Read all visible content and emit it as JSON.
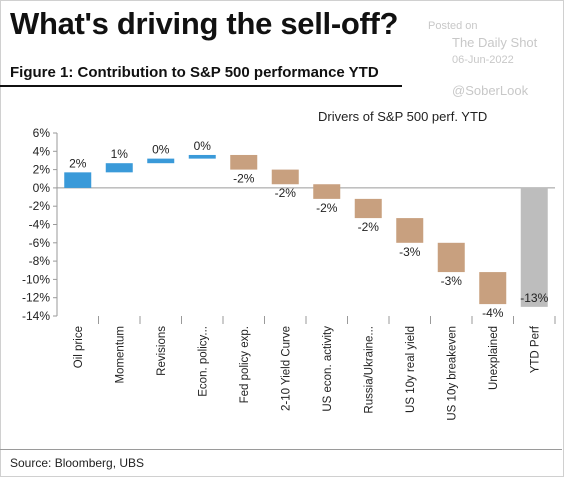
{
  "header": {
    "headline": "What's driving the sell-off?",
    "figure_title": "Figure 1: Contribution to S&P 500 performance YTD"
  },
  "watermark": {
    "posted": "Posted on",
    "source": "The Daily Shot",
    "date": "06-Jun-2022",
    "handle": "@SoberLook"
  },
  "footer": {
    "source": "Source: Bloomberg, UBS"
  },
  "colors": {
    "positive": "#3a9ad9",
    "negative": "#c8a07f",
    "total": "#bdbdbd"
  },
  "chart_data": {
    "type": "bar",
    "subtype": "waterfall",
    "title": "Drivers of S&P 500 perf. YTD",
    "ylim": [
      -14,
      6
    ],
    "y_ticks": [
      6,
      4,
      2,
      0,
      -2,
      -4,
      -6,
      -8,
      -10,
      -12,
      -14
    ],
    "y_tick_labels": [
      "6%",
      "4%",
      "2%",
      "0%",
      "-2%",
      "-4%",
      "-6%",
      "-8%",
      "-10%",
      "-12%",
      "-14%"
    ],
    "grid": false,
    "categories": [
      "Oil price",
      "Momentum",
      "Revisions",
      "Econ. policy...",
      "Fed policy exp.",
      "2-10 Yield Curve",
      "US econ. activity",
      "Russia/Ukraine...",
      "US 10y real yield",
      "US 10y breakeven",
      "Unexplained",
      "YTD Perf"
    ],
    "values": [
      1.7,
      1.0,
      0.5,
      0.4,
      -1.6,
      -1.6,
      -1.6,
      -2.1,
      -2.7,
      -3.2,
      -3.5,
      -13.0
    ],
    "data_labels": [
      "2%",
      "1%",
      "0%",
      "0%",
      "-2%",
      "-2%",
      "-2%",
      "-2%",
      "-3%",
      "-3%",
      "-4%",
      "-13%"
    ],
    "total_index": 11
  }
}
